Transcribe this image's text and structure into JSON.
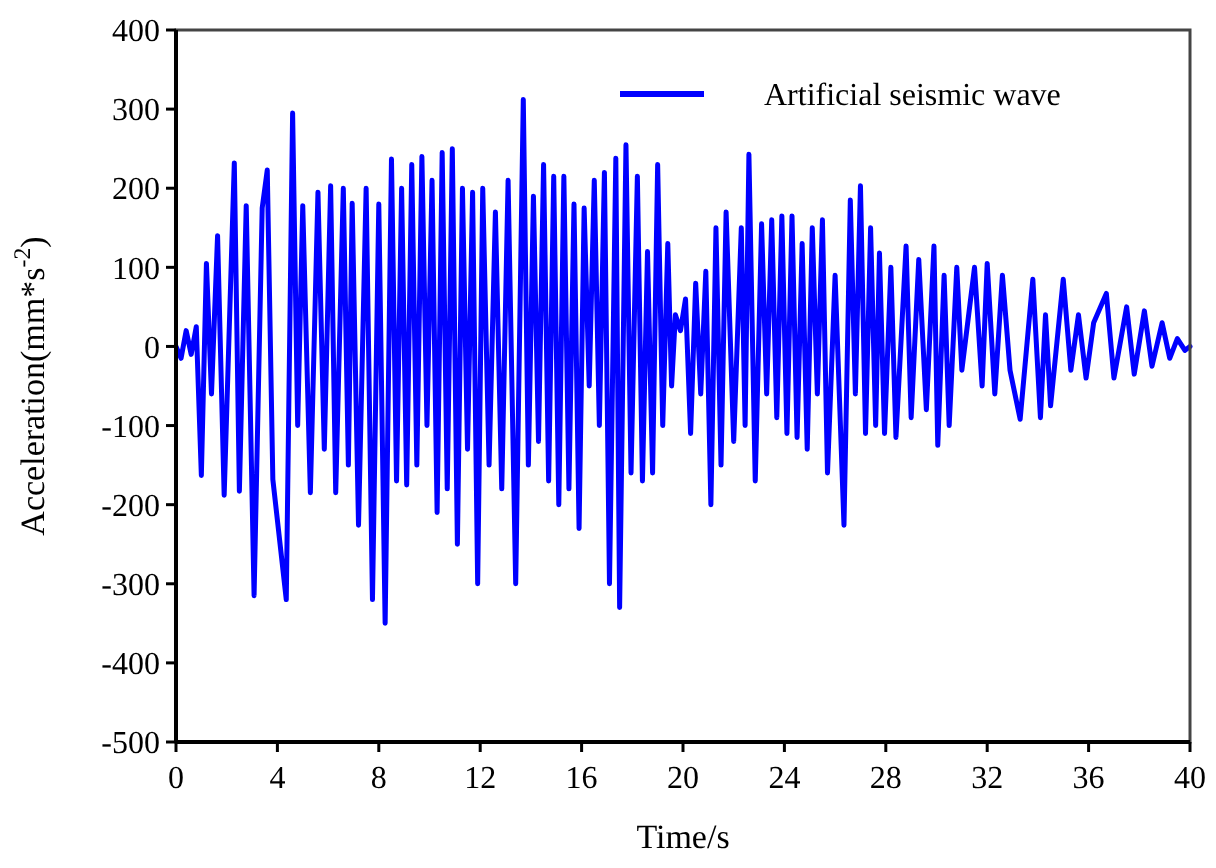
{
  "chart_data": {
    "type": "line",
    "xlabel": "Time/s",
    "ylabel": "Acceleration(mm*s$^{-2}$)",
    "xlim": [
      0,
      40
    ],
    "ylim": [
      -500,
      400
    ],
    "xticks": [
      0,
      4,
      8,
      12,
      16,
      20,
      24,
      28,
      32,
      36,
      40
    ],
    "yticks": [
      -500,
      -400,
      -300,
      -200,
      -100,
      0,
      100,
      200,
      300,
      400
    ],
    "grid": false,
    "legend": "top right",
    "series": [
      {
        "name": "Artificial seismic wave",
        "color": "#0000ff",
        "x": [
          0,
          0.2,
          0.4,
          0.6,
          0.8,
          1.0,
          1.2,
          1.4,
          1.64,
          1.9,
          2.3,
          2.5,
          2.77,
          3.08,
          3.4,
          3.6,
          3.82,
          4.35,
          4.6,
          4.8,
          5.0,
          5.3,
          5.6,
          5.85,
          6.1,
          6.3,
          6.6,
          6.8,
          6.95,
          7.2,
          7.5,
          7.75,
          8.0,
          8.25,
          8.5,
          8.7,
          8.9,
          9.1,
          9.3,
          9.5,
          9.7,
          9.9,
          10.1,
          10.3,
          10.5,
          10.7,
          10.9,
          11.1,
          11.3,
          11.5,
          11.7,
          11.9,
          12.1,
          12.35,
          12.6,
          12.85,
          13.1,
          13.4,
          13.7,
          13.9,
          14.1,
          14.3,
          14.5,
          14.7,
          14.9,
          15.1,
          15.3,
          15.5,
          15.7,
          15.9,
          16.1,
          16.3,
          16.5,
          16.7,
          16.9,
          17.1,
          17.35,
          17.5,
          17.75,
          17.95,
          18.2,
          18.4,
          18.6,
          18.8,
          19.0,
          19.2,
          19.4,
          19.55,
          19.7,
          19.9,
          20.1,
          20.3,
          20.5,
          20.7,
          20.9,
          21.1,
          21.3,
          21.5,
          21.7,
          22.0,
          22.3,
          22.45,
          22.6,
          22.85,
          23.1,
          23.3,
          23.5,
          23.7,
          23.9,
          24.1,
          24.3,
          24.5,
          24.7,
          24.9,
          25.1,
          25.3,
          25.5,
          25.7,
          26.0,
          26.35,
          26.6,
          26.8,
          27.0,
          27.2,
          27.4,
          27.6,
          27.75,
          27.95,
          28.2,
          28.4,
          28.8,
          29.0,
          29.3,
          29.6,
          29.9,
          30.05,
          30.3,
          30.5,
          30.8,
          31.0,
          31.5,
          31.8,
          32.0,
          32.3,
          32.6,
          32.9,
          33.3,
          33.8,
          34.1,
          34.3,
          34.5,
          35.0,
          35.3,
          35.6,
          35.9,
          36.2,
          36.7,
          37.0,
          37.5,
          37.8,
          38.2,
          38.5,
          38.9,
          39.2,
          39.5,
          39.8,
          40
        ],
        "values": [
          0,
          -15,
          20,
          -10,
          25,
          -163,
          105,
          -60,
          140,
          -188,
          232,
          -183,
          178,
          -315,
          175,
          223,
          -168,
          -320,
          295,
          -100,
          178,
          -185,
          195,
          -130,
          203,
          -185,
          200,
          -150,
          181,
          -226,
          200,
          -320,
          180,
          -350,
          237,
          -170,
          200,
          -175,
          230,
          -150,
          240,
          -100,
          210,
          -210,
          245,
          -180,
          250,
          -250,
          200,
          -130,
          195,
          -300,
          200,
          -150,
          170,
          -180,
          210,
          -300,
          312,
          -150,
          190,
          -120,
          230,
          -170,
          215,
          -200,
          215,
          -180,
          180,
          -230,
          175,
          -50,
          210,
          -100,
          220,
          -300,
          238,
          -330,
          255,
          -160,
          215,
          -170,
          120,
          -160,
          230,
          -100,
          130,
          -50,
          40,
          20,
          60,
          -110,
          80,
          -60,
          95,
          -200,
          150,
          -150,
          170,
          -120,
          150,
          -100,
          243,
          -170,
          155,
          -60,
          160,
          -90,
          165,
          -110,
          165,
          -115,
          130,
          -130,
          150,
          -60,
          160,
          -160,
          90,
          -226,
          185,
          -60,
          203,
          -110,
          150,
          -100,
          118,
          -110,
          100,
          -115,
          127,
          -90,
          110,
          -80,
          127,
          -125,
          90,
          -100,
          100,
          -30,
          100,
          -50,
          105,
          -60,
          90,
          -30,
          -92,
          85,
          -90,
          40,
          -75,
          85,
          -30,
          40,
          -40,
          30,
          67,
          -40,
          50,
          -35,
          45,
          -25,
          30,
          -15,
          10,
          -5,
          0
        ]
      }
    ]
  }
}
